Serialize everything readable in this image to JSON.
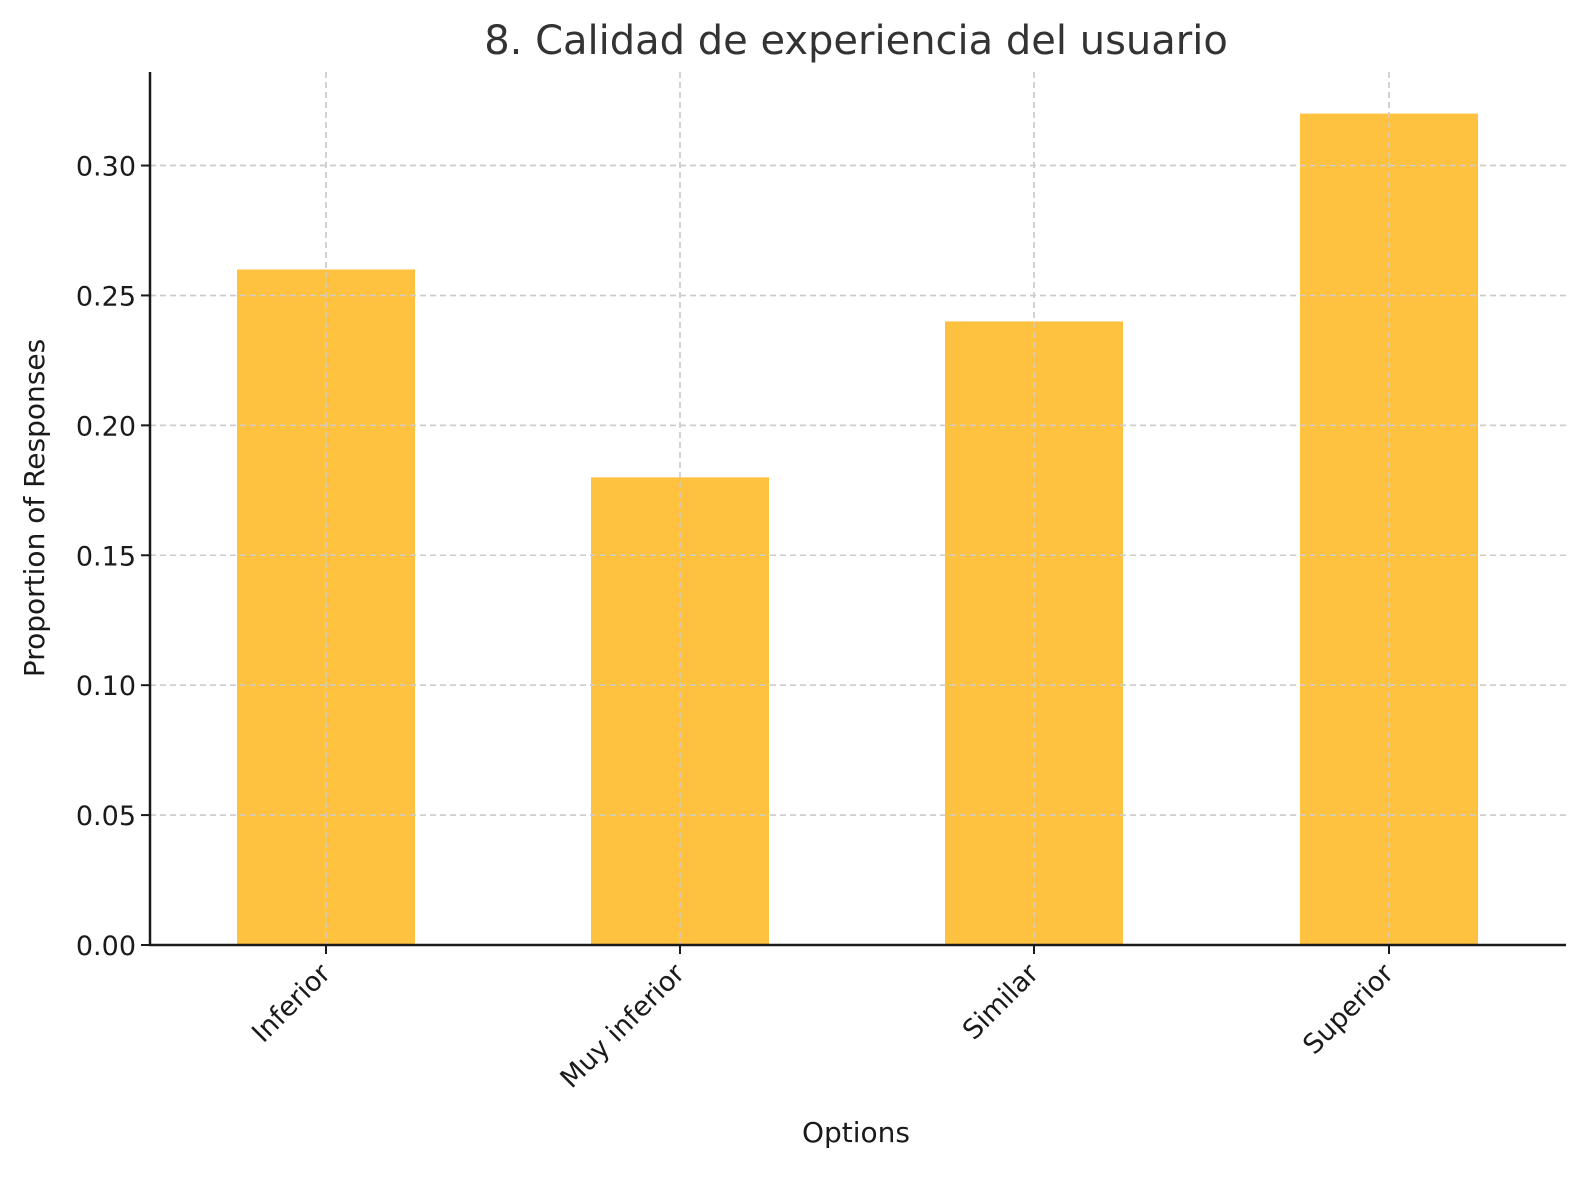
{
  "chart_data": {
    "type": "bar",
    "title": "8. Calidad de experiencia del usuario",
    "xlabel": "Options",
    "ylabel": "Proportion of Responses",
    "categories": [
      "Inferior",
      "Muy inferior",
      "Similar",
      "Superior"
    ],
    "values": [
      0.26,
      0.18,
      0.24,
      0.32
    ],
    "ylim": [
      0,
      0.336
    ],
    "yticks": [
      "0.00",
      "0.05",
      "0.10",
      "0.15",
      "0.20",
      "0.25",
      "0.30"
    ],
    "grid": true,
    "bar_color": "#ffc240"
  }
}
